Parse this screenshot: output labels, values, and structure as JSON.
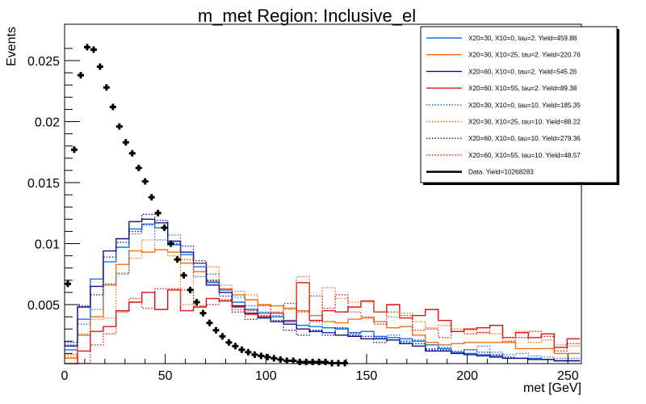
{
  "chart_data": {
    "type": "line",
    "title": "m_met Region: Inclusive_el",
    "xlabel": "met [GeV]",
    "ylabel": "Events",
    "xlim": [
      0,
      256.7
    ],
    "ylim": [
      0,
      0.0265
    ],
    "xticks": [
      0,
      50,
      100,
      150,
      200,
      250
    ],
    "xtick_labels": [
      "0",
      "50",
      "100",
      "150",
      "200",
      "250"
    ],
    "yticks": [
      0.005,
      0.01,
      0.015,
      0.02,
      0.025
    ],
    "ytick_labels": [
      "0.005",
      "0.01",
      "0.015",
      "0.02",
      "0.025"
    ],
    "grid": false,
    "legend_position": "top-right",
    "bin_width": 6.4,
    "series": [
      {
        "name": "X20=30, X10=0, tau=2. Yield=459.88",
        "color": "#1a6ee6",
        "style": "solid",
        "values": [
          0.0013,
          0.0038,
          0.0071,
          0.0085,
          0.0097,
          0.0112,
          0.0116,
          0.0113,
          0.0099,
          0.0091,
          0.0081,
          0.0068,
          0.0062,
          0.0052,
          0.0046,
          0.0043,
          0.004,
          0.0036,
          0.0033,
          0.0032,
          0.0031,
          0.003,
          0.0027,
          0.0028,
          0.0024,
          0.0023,
          0.0022,
          0.002,
          0.0017,
          0.0014,
          0.0011,
          0.001,
          0.0009,
          0.0008,
          0.0006,
          0.0006,
          0.0006,
          0.0005,
          0.0004,
          0.0004
        ]
      },
      {
        "name": "X20=30, X10=25, tau=2. Yield=220.76",
        "color": "#f07010",
        "style": "solid",
        "values": [
          0.0006,
          0.0025,
          0.004,
          0.0066,
          0.0083,
          0.0094,
          0.0093,
          0.0095,
          0.0093,
          0.0084,
          0.0077,
          0.0069,
          0.0063,
          0.0058,
          0.0054,
          0.005,
          0.0049,
          0.0047,
          0.0045,
          0.0041,
          0.0036,
          0.0035,
          0.0038,
          0.0039,
          0.0036,
          0.0031,
          0.0032,
          0.0025,
          0.0019,
          0.0017,
          0.0018,
          0.0019,
          0.0019,
          0.0019,
          0.0019,
          0.0014,
          0.0014,
          0.0014,
          0.001,
          0.001
        ]
      },
      {
        "name": "X20=60, X10=0, tau=2. Yield=545.26",
        "color": "#10108c",
        "style": "solid",
        "values": [
          0.0016,
          0.0048,
          0.0065,
          0.0094,
          0.0104,
          0.0118,
          0.012,
          0.0117,
          0.0102,
          0.0093,
          0.0084,
          0.0066,
          0.006,
          0.0049,
          0.0043,
          0.0039,
          0.0036,
          0.0034,
          0.003,
          0.0028,
          0.0027,
          0.0025,
          0.0024,
          0.0022,
          0.0022,
          0.0021,
          0.0018,
          0.0016,
          0.0012,
          0.0012,
          0.001,
          0.0009,
          0.0008,
          0.0007,
          0.0006,
          0.0006,
          0.0005,
          0.0005,
          0.0004,
          0.0004
        ]
      },
      {
        "name": "X20=60, X10=55, tau=2. Yield=89.38",
        "color": "#e01010",
        "style": "solid",
        "values": [
          0.0,
          0.0012,
          0.0028,
          0.0032,
          0.0045,
          0.0052,
          0.006,
          0.0046,
          0.0062,
          0.0045,
          0.0048,
          0.0055,
          0.0053,
          0.0048,
          0.0042,
          0.004,
          0.0043,
          0.0037,
          0.0068,
          0.0037,
          0.0045,
          0.0044,
          0.0048,
          0.0053,
          0.0044,
          0.005,
          0.0039,
          0.0041,
          0.0046,
          0.0037,
          0.0028,
          0.003,
          0.0031,
          0.0033,
          0.0023,
          0.0027,
          0.0023,
          0.0026,
          0.0015,
          0.0022
        ]
      },
      {
        "name": "X20=30, X10=0, tau=10. Yield=185.35",
        "color": "#1a6ee6",
        "style": "dotted",
        "values": [
          0.0017,
          0.0034,
          0.0046,
          0.0067,
          0.0075,
          0.0108,
          0.0115,
          0.0103,
          0.0107,
          0.0087,
          0.0073,
          0.0075,
          0.0062,
          0.0056,
          0.0049,
          0.0044,
          0.0041,
          0.0037,
          0.0033,
          0.0036,
          0.0027,
          0.0031,
          0.0026,
          0.0028,
          0.0023,
          0.0025,
          0.0019,
          0.0021,
          0.0014,
          0.0015,
          0.0012,
          0.0013,
          0.0016,
          0.0011,
          0.0009,
          0.001,
          0.0008,
          0.0007,
          0.0006,
          0.0006
        ]
      },
      {
        "name": "X20=30, X10=25, tau=10. Yield=88.22",
        "color": "#f07010",
        "style": "dotted",
        "values": [
          0.0007,
          0.0026,
          0.0038,
          0.0039,
          0.0076,
          0.0088,
          0.0103,
          0.0095,
          0.009,
          0.005,
          0.0084,
          0.0081,
          0.0066,
          0.0061,
          0.0058,
          0.005,
          0.0043,
          0.0046,
          0.0073,
          0.0041,
          0.0064,
          0.0055,
          0.0052,
          0.0052,
          0.0044,
          0.004,
          0.0043,
          0.0036,
          0.0031,
          0.0033,
          0.003,
          0.0029,
          0.0027,
          0.0026,
          0.0023,
          0.0028,
          0.0019,
          0.0021,
          0.0017,
          0.0016
        ]
      },
      {
        "name": "X20=60, X10=0, tau=10. Yield=279.36",
        "color": "#10108c",
        "style": "dotted",
        "values": [
          0.0019,
          0.0049,
          0.0058,
          0.0089,
          0.0101,
          0.011,
          0.0124,
          0.0119,
          0.01,
          0.0098,
          0.0086,
          0.007,
          0.0057,
          0.0044,
          0.0038,
          0.0041,
          0.0037,
          0.0029,
          0.0025,
          0.0029,
          0.0025,
          0.0031,
          0.0025,
          0.0024,
          0.0019,
          0.0021,
          0.002,
          0.0018,
          0.0013,
          0.0013,
          0.001,
          0.0013,
          0.0011,
          0.0009,
          0.0007,
          0.0006,
          0.0005,
          0.0005,
          0.0004,
          0.0004
        ]
      },
      {
        "name": "X20=60, X10=55, tau=10. Yield=48.57",
        "color": "#e01010",
        "style": "dotted",
        "values": [
          0.0009,
          0.0002,
          0.0017,
          0.0026,
          0.0044,
          0.0055,
          0.0047,
          0.0063,
          0.0063,
          0.0062,
          0.0049,
          0.005,
          0.0054,
          0.0046,
          0.0045,
          0.0049,
          0.0044,
          0.0051,
          0.0044,
          0.0057,
          0.0047,
          0.0058,
          0.0044,
          0.004,
          0.0034,
          0.0044,
          0.0041,
          0.0029,
          0.003,
          0.0023,
          0.0028,
          0.0026,
          0.0027,
          0.0033,
          0.002,
          0.0023,
          0.0028,
          0.0024,
          0.0012,
          0.0018
        ]
      }
    ],
    "data_points": {
      "name": "Data. Yield=10268283",
      "color": "#000000",
      "x": [
        0.0,
        3.2,
        6.4,
        9.6,
        12.8,
        16.0,
        19.2,
        22.4,
        25.6,
        28.8,
        32.0,
        35.2,
        38.4,
        41.6,
        44.8,
        48.0,
        51.2,
        54.4,
        57.6,
        60.8,
        64.0,
        67.2,
        70.4,
        73.6,
        76.8,
        80.0,
        83.2,
        86.4,
        89.6,
        92.8,
        96.0,
        99.2,
        102.4,
        105.6,
        108.8,
        112.0,
        115.2,
        118.4,
        121.6,
        124.8,
        128.0,
        131.2,
        134.4,
        137.6
      ],
      "y": [
        0.0067,
        0.0177,
        0.0238,
        0.0261,
        0.0259,
        0.0245,
        0.0228,
        0.0212,
        0.0196,
        0.0183,
        0.0174,
        0.0162,
        0.0151,
        0.0138,
        0.0125,
        0.0113,
        0.01,
        0.0087,
        0.0074,
        0.0062,
        0.0052,
        0.0043,
        0.0035,
        0.0029,
        0.0024,
        0.0019,
        0.0016,
        0.0013,
        0.0011,
        0.0009,
        0.0008,
        0.0007,
        0.0006,
        0.0005,
        0.0004,
        0.0004,
        0.0003,
        0.0003,
        0.0003,
        0.0003,
        0.0003,
        0.0002,
        0.0002,
        0.0002
      ]
    }
  }
}
